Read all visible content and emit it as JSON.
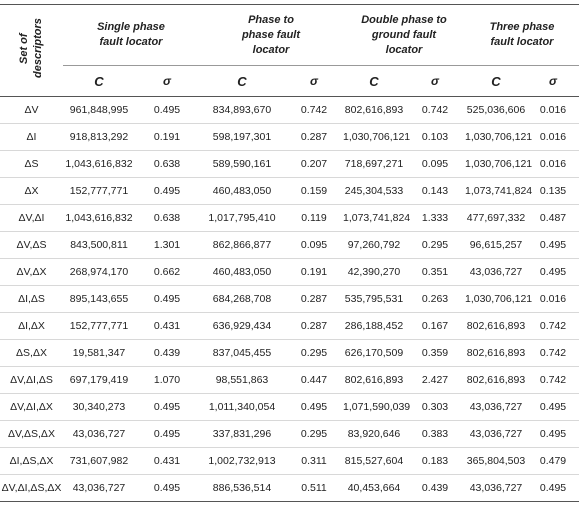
{
  "table": {
    "corner": "Set of descriptors",
    "groups": [
      "Single phase fault locator",
      "Phase to phase fault locator",
      "Double phase to ground fault locator",
      "Three phase fault locator"
    ],
    "subheaders": [
      "C",
      "σ",
      "C",
      "σ",
      "C",
      "σ",
      "C",
      "σ"
    ],
    "rows": [
      [
        "ΔV",
        "961,848,995",
        "0.495",
        "834,893,670",
        "0.742",
        "802,616,893",
        "0.742",
        "525,036,606",
        "0.016"
      ],
      [
        "ΔI",
        "918,813,292",
        "0.191",
        "598,197,301",
        "0.287",
        "1,030,706,121",
        "0.103",
        "1,030,706,121",
        "0.016"
      ],
      [
        "ΔS",
        "1,043,616,832",
        "0.638",
        "589,590,161",
        "0.207",
        "718,697,271",
        "0.095",
        "1,030,706,121",
        "0.016"
      ],
      [
        "ΔX",
        "152,777,771",
        "0.495",
        "460,483,050",
        "0.159",
        "245,304,533",
        "0.143",
        "1,073,741,824",
        "0.135"
      ],
      [
        "ΔV,ΔI",
        "1,043,616,832",
        "0.638",
        "1,017,795,410",
        "0.119",
        "1,073,741,824",
        "1.333",
        "477,697,332",
        "0.487"
      ],
      [
        "ΔV,ΔS",
        "843,500,811",
        "1.301",
        "862,866,877",
        "0.095",
        "97,260,792",
        "0.295",
        "96,615,257",
        "0.495"
      ],
      [
        "ΔV,ΔX",
        "268,974,170",
        "0.662",
        "460,483,050",
        "0.191",
        "42,390,270",
        "0.351",
        "43,036,727",
        "0.495"
      ],
      [
        "ΔI,ΔS",
        "895,143,655",
        "0.495",
        "684,268,708",
        "0.287",
        "535,795,531",
        "0.263",
        "1,030,706,121",
        "0.016"
      ],
      [
        "ΔI,ΔX",
        "152,777,771",
        "0.431",
        "636,929,434",
        "0.287",
        "286,188,452",
        "0.167",
        "802,616,893",
        "0.742"
      ],
      [
        "ΔS,ΔX",
        "19,581,347",
        "0.439",
        "837,045,455",
        "0.295",
        "626,170,509",
        "0.359",
        "802,616,893",
        "0.742"
      ],
      [
        "ΔV,ΔI,ΔS",
        "697,179,419",
        "1.070",
        "98,551,863",
        "0.447",
        "802,616,893",
        "2.427",
        "802,616,893",
        "0.742"
      ],
      [
        "ΔV,ΔI,ΔX",
        "30,340,273",
        "0.495",
        "1,011,340,054",
        "0.495",
        "1,071,590,039",
        "0.303",
        "43,036,727",
        "0.495"
      ],
      [
        "ΔV,ΔS,ΔX",
        "43,036,727",
        "0.495",
        "337,831,296",
        "0.295",
        "83,920,646",
        "0.383",
        "43,036,727",
        "0.495"
      ],
      [
        "ΔI,ΔS,ΔX",
        "731,607,982",
        "0.431",
        "1,002,732,913",
        "0.311",
        "815,527,604",
        "0.183",
        "365,804,503",
        "0.479"
      ],
      [
        "ΔV,ΔI,ΔS,ΔX",
        "43,036,727",
        "0.495",
        "886,536,514",
        "0.511",
        "40,453,664",
        "0.439",
        "43,036,727",
        "0.495"
      ]
    ]
  }
}
